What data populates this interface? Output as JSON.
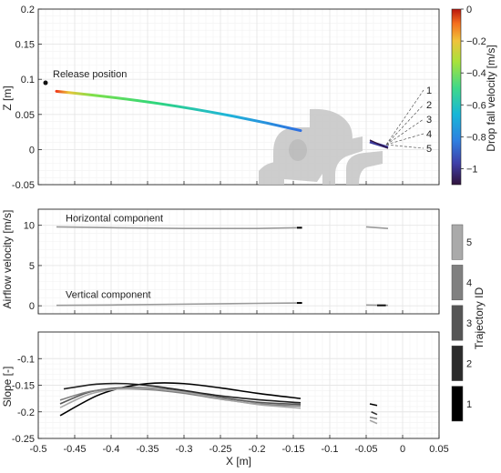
{
  "colors": {
    "axis": "#262626",
    "grid": "#e6e6e6",
    "minor_grid": "#f2f2f2",
    "text": "#262626"
  },
  "chart_data": [
    {
      "type": "line",
      "panel": "top",
      "ylabel": "Z [m]",
      "xlim": [
        -0.5,
        0.05
      ],
      "ylim": [
        -0.05,
        0.2
      ],
      "yticks": [
        -0.05,
        0,
        0.05,
        0.1,
        0.15,
        0.2
      ],
      "ytick_labels": [
        "-0.05",
        "0",
        "0.05",
        "0.1",
        "0.15",
        "0.2"
      ],
      "grid": true,
      "annotations": {
        "release_label": "Release position",
        "release_point": {
          "x": -0.49,
          "y": 0.095
        }
      },
      "trajectory_labels": [
        "1",
        "2",
        "3",
        "4",
        "5"
      ],
      "main_trajectory": {
        "x": [
          -0.475,
          -0.14
        ],
        "y": [
          0.083,
          0.027
        ],
        "velocity_start": -0.05,
        "velocity_end": -0.85
      },
      "short_trajectory": {
        "x": [
          -0.045,
          -0.02
        ],
        "y": [
          0.011,
          0.003
        ],
        "velocity": -1.0
      },
      "colorbar": {
        "label": "Drop fall velocity [m/s]",
        "range": [
          -1.1,
          0
        ],
        "ticks": [
          0,
          -0.2,
          -0.4,
          -0.6,
          -0.8,
          -1
        ],
        "tick_labels": [
          "0",
          "−0.2",
          "−0.4",
          "−0.6",
          "−0.8",
          "−1"
        ]
      }
    },
    {
      "type": "line",
      "panel": "middle",
      "ylabel": "Airflow velocity [m/s]",
      "xlim": [
        -0.5,
        0.05
      ],
      "ylim": [
        -1,
        12
      ],
      "yticks": [
        0,
        5,
        10
      ],
      "ytick_labels": [
        "0",
        "5",
        "10"
      ],
      "grid": true,
      "annotations": [
        "Horizontal component",
        "Vertical component"
      ],
      "series": [
        {
          "component": "horizontal",
          "x": [
            -0.475,
            -0.4,
            -0.3,
            -0.2,
            -0.14
          ],
          "values": [
            9.8,
            9.7,
            9.6,
            9.6,
            9.7
          ]
        },
        {
          "component": "horizontal",
          "x": [
            -0.05,
            -0.02
          ],
          "values": [
            9.8,
            9.6
          ]
        },
        {
          "component": "vertical",
          "x": [
            -0.475,
            -0.4,
            -0.3,
            -0.2,
            -0.14
          ],
          "values": [
            0.05,
            0.1,
            0.2,
            0.3,
            0.35
          ]
        },
        {
          "component": "vertical",
          "x": [
            -0.05,
            -0.02
          ],
          "values": [
            0.1,
            0.05
          ]
        }
      ],
      "colorbar": {
        "label": "Trajectory ID",
        "categories": [
          "1",
          "2",
          "3",
          "4",
          "5"
        ],
        "colors": [
          "#000000",
          "#2b2b2b",
          "#555555",
          "#808080",
          "#aaaaaa"
        ]
      }
    },
    {
      "type": "line",
      "panel": "bottom",
      "xlabel": "X [m]",
      "ylabel": "Slope [-]",
      "xlim": [
        -0.5,
        0.05
      ],
      "ylim": [
        -0.25,
        -0.05
      ],
      "yticks": [
        -0.1,
        -0.15,
        -0.2,
        -0.25
      ],
      "ytick_labels": [
        "-0.1",
        "-0.15",
        "-0.2",
        "-0.25"
      ],
      "xticks": [
        -0.5,
        -0.45,
        -0.4,
        -0.35,
        -0.3,
        -0.25,
        -0.2,
        -0.15,
        -0.1,
        -0.05,
        0,
        0.05
      ],
      "xtick_labels": [
        "-0.5",
        "-0.45",
        "-0.4",
        "-0.35",
        "-0.3",
        "-0.25",
        "-0.2",
        "-0.15",
        "-0.1",
        "-0.05",
        "0",
        "0.05"
      ],
      "grid": true,
      "series": [
        {
          "id": "1",
          "color": "#000000",
          "x": [
            -0.47,
            -0.42,
            -0.38,
            -0.34,
            -0.3,
            -0.25,
            -0.2,
            -0.14
          ],
          "values": [
            -0.207,
            -0.17,
            -0.153,
            -0.146,
            -0.147,
            -0.155,
            -0.165,
            -0.175
          ]
        },
        {
          "id": "2",
          "color": "#222222",
          "x": [
            -0.465,
            -0.42,
            -0.38,
            -0.34,
            -0.3,
            -0.25,
            -0.2,
            -0.14
          ],
          "values": [
            -0.157,
            -0.148,
            -0.147,
            -0.152,
            -0.16,
            -0.17,
            -0.177,
            -0.183
          ]
        },
        {
          "id": "3",
          "color": "#555555",
          "x": [
            -0.47,
            -0.43,
            -0.39,
            -0.35,
            -0.3,
            -0.25,
            -0.2,
            -0.14
          ],
          "values": [
            -0.185,
            -0.163,
            -0.155,
            -0.155,
            -0.162,
            -0.173,
            -0.182,
            -0.186
          ]
        },
        {
          "id": "4",
          "color": "#808080",
          "x": [
            -0.47,
            -0.43,
            -0.39,
            -0.35,
            -0.3,
            -0.25,
            -0.2,
            -0.14
          ],
          "values": [
            -0.178,
            -0.162,
            -0.157,
            -0.158,
            -0.165,
            -0.176,
            -0.185,
            -0.189
          ]
        },
        {
          "id": "5",
          "color": "#a6a6a6",
          "x": [
            -0.47,
            -0.43,
            -0.39,
            -0.35,
            -0.3,
            -0.25,
            -0.2,
            -0.14
          ],
          "values": [
            -0.192,
            -0.167,
            -0.157,
            -0.156,
            -0.163,
            -0.175,
            -0.186,
            -0.193
          ]
        },
        {
          "id": "1",
          "color": "#000000",
          "x": [
            -0.045,
            -0.035
          ],
          "values": [
            -0.185,
            -0.188
          ]
        },
        {
          "id": "2",
          "color": "#333333",
          "x": [
            -0.043,
            -0.035
          ],
          "values": [
            -0.2,
            -0.205
          ]
        },
        {
          "id": "4",
          "color": "#808080",
          "x": [
            -0.045,
            -0.035
          ],
          "values": [
            -0.21,
            -0.213
          ]
        },
        {
          "id": "5",
          "color": "#a6a6a6",
          "x": [
            -0.045,
            -0.035
          ],
          "values": [
            -0.216,
            -0.222
          ]
        }
      ]
    }
  ]
}
